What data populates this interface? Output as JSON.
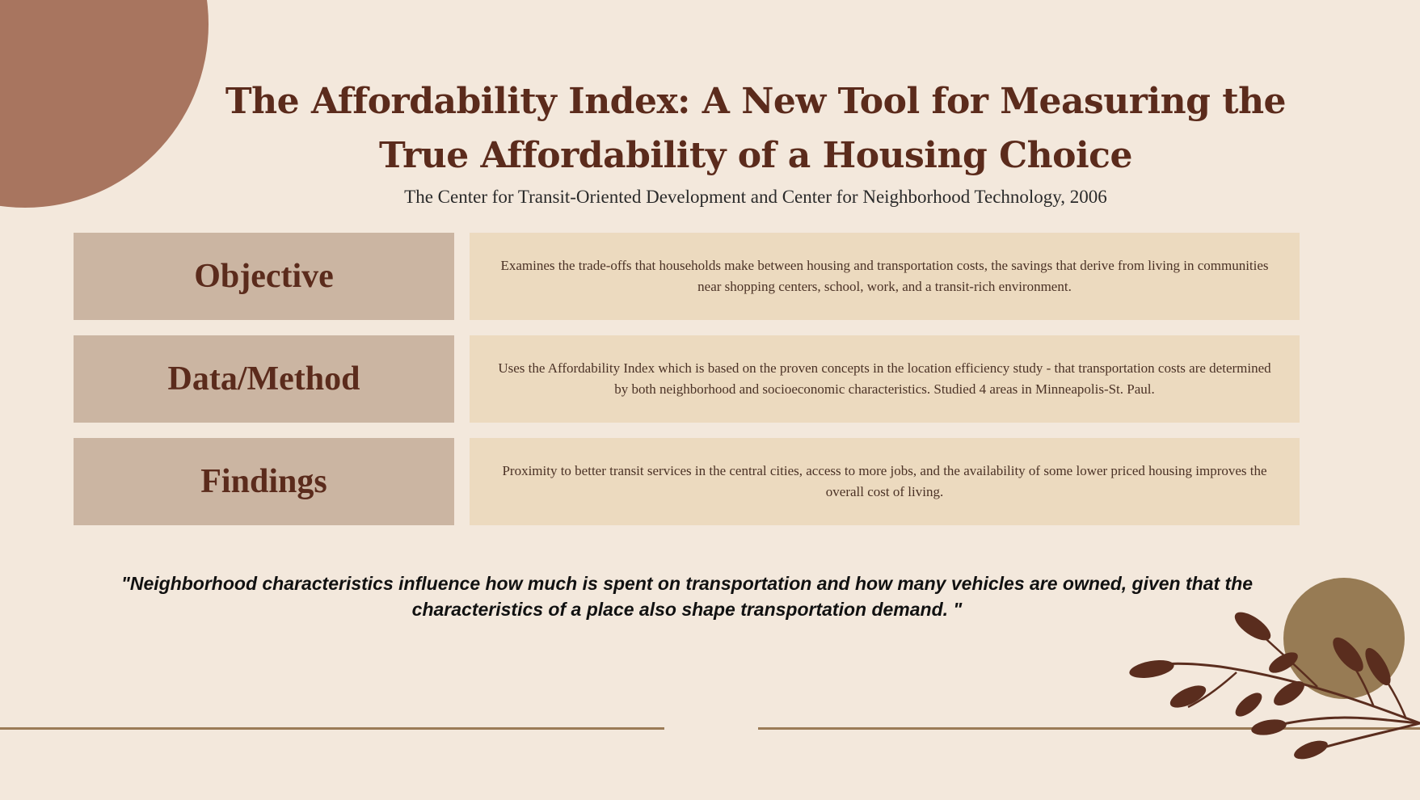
{
  "title": "The Affordability Index: A New Tool for Measuring the True Affordability of a Housing Choice",
  "subtitle": "The Center for Transit-Oriented Development and Center for Neighborhood Technology, 2006",
  "rows": [
    {
      "label": "Objective",
      "text": "Examines the trade-offs that households make between housing and transportation costs, the savings that derive from living in communities near shopping centers, school, work, and a transit-rich environment."
    },
    {
      "label": "Data/Method",
      "text": "Uses the Affordability Index which is based on the proven concepts in the location efficiency study - that transportation costs are determined by both neighborhood and socioeconomic characteristics. Studied 4 areas in Minneapolis-St. Paul."
    },
    {
      "label": "Findings",
      "text": "Proximity to better transit services in the central cities, access to more jobs, and the availability of some lower priced housing improves the overall cost of living."
    }
  ],
  "quote": "\"Neighborhood characteristics influence how much is spent on transportation and how many vehicles are owned, given that the characteristics of a place also shape transportation demand. \"",
  "colors": {
    "background": "#f3e8dc",
    "title": "#5b2b1c",
    "label_box": "#cbb5a2",
    "text_box": "#ecdabf",
    "corner_circle": "#a8755f",
    "olive_circle": "#977b54",
    "rule": "#9b7b57",
    "branch": "#5a2d1e"
  },
  "icons": {
    "corner": "decorative-circle",
    "branch": "leaf-branch-icon"
  }
}
